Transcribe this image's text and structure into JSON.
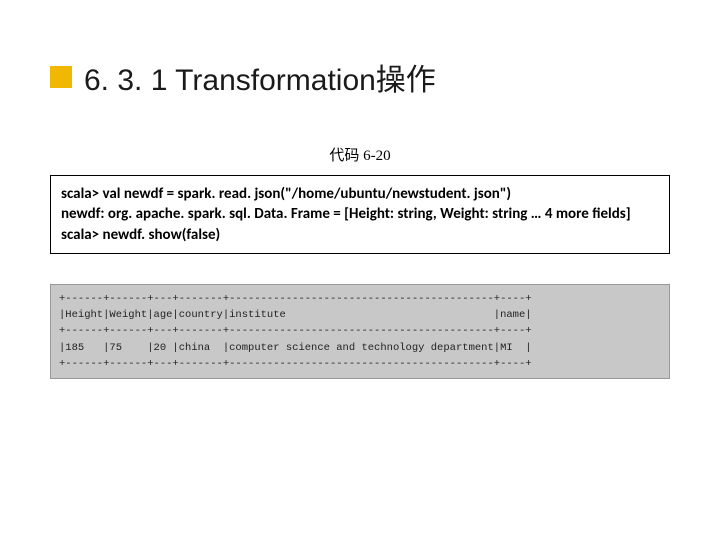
{
  "title": "6. 3. 1 Transformation操作",
  "caption": "代码 6-20",
  "code": {
    "line1": "scala> val newdf = spark. read. json(\"/home/ubuntu/newstudent. json\")",
    "line2": "newdf: org. apache. spark. sql. Data. Frame = [Height: string, Weight: string … 4 more fields]",
    "line3": "scala> newdf. show(false)"
  },
  "output": {
    "sep": "+------+------+---+-------+------------------------------------------+----+",
    "header": "|Height|Weight|age|country|institute                                 |name|",
    "row": "|185   |75    |20 |china  |computer science and technology department|MI  |"
  },
  "style": {
    "title_block_color": "#f0b800",
    "title_fontsize": 30,
    "caption_fontsize": 15,
    "code_fontsize": 15,
    "output_bg": "#c8c8c8",
    "output_fontsize": 10.5,
    "page_bg": "#ffffff"
  }
}
